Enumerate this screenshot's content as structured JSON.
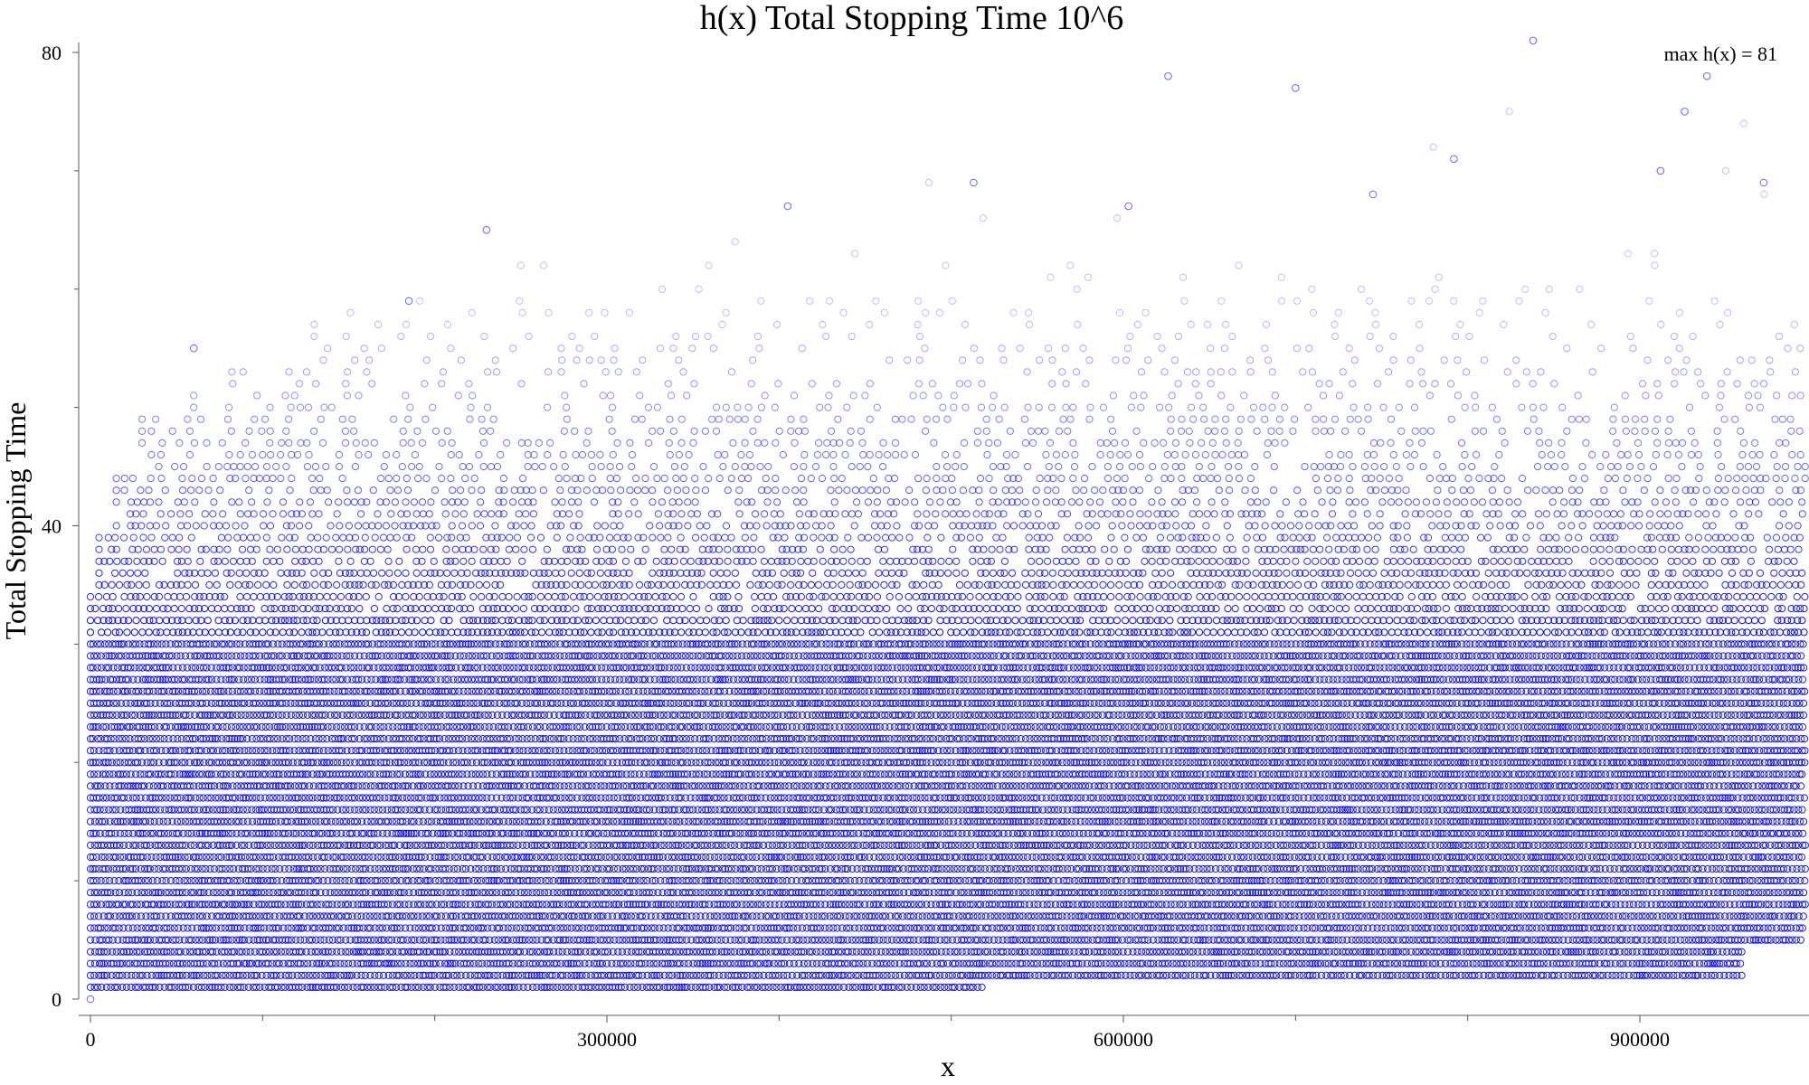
{
  "chart_data": {
    "type": "scatter",
    "title": "h(x) Total Stopping Time 10^6",
    "xlabel": "x",
    "ylabel": "Total Stopping Time",
    "xlim": [
      0,
      1000000
    ],
    "ylim": [
      0,
      81
    ],
    "x_ticks": [
      0,
      300000,
      600000,
      900000
    ],
    "y_ticks": [
      0,
      40,
      80
    ],
    "x_minor_step": 100000,
    "y_minor_step": 10,
    "grid": false,
    "marker": "open-circle",
    "annotation": "max h(x) = 81",
    "series": [
      {
        "name": "",
        "color": "#0000ff",
        "band_profile": [
          {
            "y": 0,
            "x_from": 0,
            "x_to": 0
          },
          {
            "y": 1,
            "x_from": 0,
            "x_to": 520000
          },
          {
            "y": 2,
            "x_from": 0,
            "x_to": 960000
          },
          {
            "y": 5,
            "x_from": 0,
            "x_to": 1000000
          },
          {
            "y": 10,
            "x_from": 0,
            "x_to": 1000000
          },
          {
            "y": 20,
            "x_from": 0,
            "x_to": 1000000
          },
          {
            "y": 30,
            "x_from": 0,
            "x_to": 1000000
          },
          {
            "y": 35,
            "x_from": 5000,
            "x_to": 1000000
          },
          {
            "y": 40,
            "x_from": 15000,
            "x_to": 1000000
          },
          {
            "y": 45,
            "x_from": 30000,
            "x_to": 1000000
          },
          {
            "y": 50,
            "x_from": 60000,
            "x_to": 1000000
          },
          {
            "y": 55,
            "x_from": 130000,
            "x_to": 1000000
          },
          {
            "y": 60,
            "x_from": 250000,
            "x_to": 1000000
          },
          {
            "y": 65,
            "x_from": 400000,
            "x_to": 1000000
          },
          {
            "y": 70,
            "x_from": 780000,
            "x_to": 1000000
          }
        ],
        "peaks": [
          {
            "x": 0,
            "y": 0
          },
          {
            "x": 60000,
            "y": 55
          },
          {
            "x": 185000,
            "y": 59
          },
          {
            "x": 230000,
            "y": 65
          },
          {
            "x": 405000,
            "y": 67
          },
          {
            "x": 513000,
            "y": 69
          },
          {
            "x": 603000,
            "y": 67
          },
          {
            "x": 626000,
            "y": 78
          },
          {
            "x": 700000,
            "y": 77
          },
          {
            "x": 745000,
            "y": 68
          },
          {
            "x": 792000,
            "y": 71
          },
          {
            "x": 838000,
            "y": 81
          },
          {
            "x": 912000,
            "y": 70
          },
          {
            "x": 926000,
            "y": 75
          },
          {
            "x": 939000,
            "y": 78
          },
          {
            "x": 972000,
            "y": 69
          }
        ]
      }
    ]
  }
}
